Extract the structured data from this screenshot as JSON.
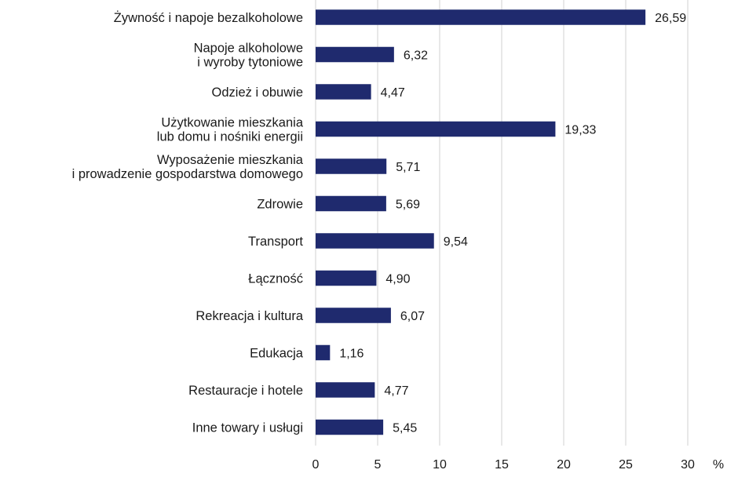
{
  "chart_data": {
    "type": "bar",
    "orientation": "horizontal",
    "categories": [
      [
        "Żywność i napoje bezalkoholowe"
      ],
      [
        "Napoje alkoholowe",
        "i wyroby tytoniowe"
      ],
      [
        "Odzież i obuwie"
      ],
      [
        "Użytkowanie mieszkania",
        "lub domu i nośniki energii"
      ],
      [
        "Wyposażenie mieszkania",
        "i prowadzenie gospodarstwa domowego"
      ],
      [
        "Zdrowie"
      ],
      [
        "Transport"
      ],
      [
        "Łączność"
      ],
      [
        "Rekreacja i kultura"
      ],
      [
        "Edukacja"
      ],
      [
        "Restauracje i hotele"
      ],
      [
        "Inne towary i usługi"
      ]
    ],
    "values": [
      26.59,
      6.32,
      4.47,
      19.33,
      5.71,
      5.69,
      9.54,
      4.9,
      6.07,
      1.16,
      4.77,
      5.45
    ],
    "value_labels": [
      "26,59",
      "6,32",
      "4,47",
      "19,33",
      "5,71",
      "5,69",
      "9,54",
      "4,90",
      "6,07",
      "1,16",
      "4,77",
      "5,45"
    ],
    "xlim": [
      0,
      30
    ],
    "xticks": [
      0,
      5,
      10,
      15,
      20,
      25,
      30
    ],
    "xlabel": "%",
    "grid": "vertical",
    "bar_color": "#1f2a6e",
    "grid_color": "#d0d0d0"
  }
}
